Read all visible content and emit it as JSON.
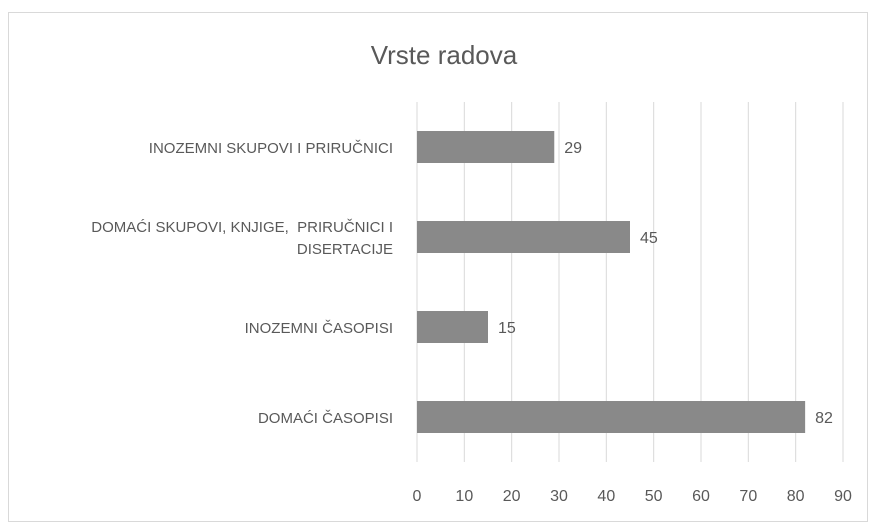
{
  "chart_data": {
    "type": "bar",
    "orientation": "horizontal",
    "title": "Vrste radova",
    "categories": [
      "INOZEMNI SKUPOVI I PRIRUČNICI",
      "DOMAĆI SKUPOVI, KNJIGE,  PRIRUČNICI I DISERTACIJE",
      "INOZEMNI ČASOPISI",
      "DOMAĆI ČASOPISI"
    ],
    "values": [
      29,
      45,
      15,
      82
    ],
    "color": "#898989",
    "xlim": [
      0,
      90
    ],
    "xticks": [
      0,
      10,
      20,
      30,
      40,
      50,
      60,
      70,
      80,
      90
    ],
    "grid": true
  }
}
